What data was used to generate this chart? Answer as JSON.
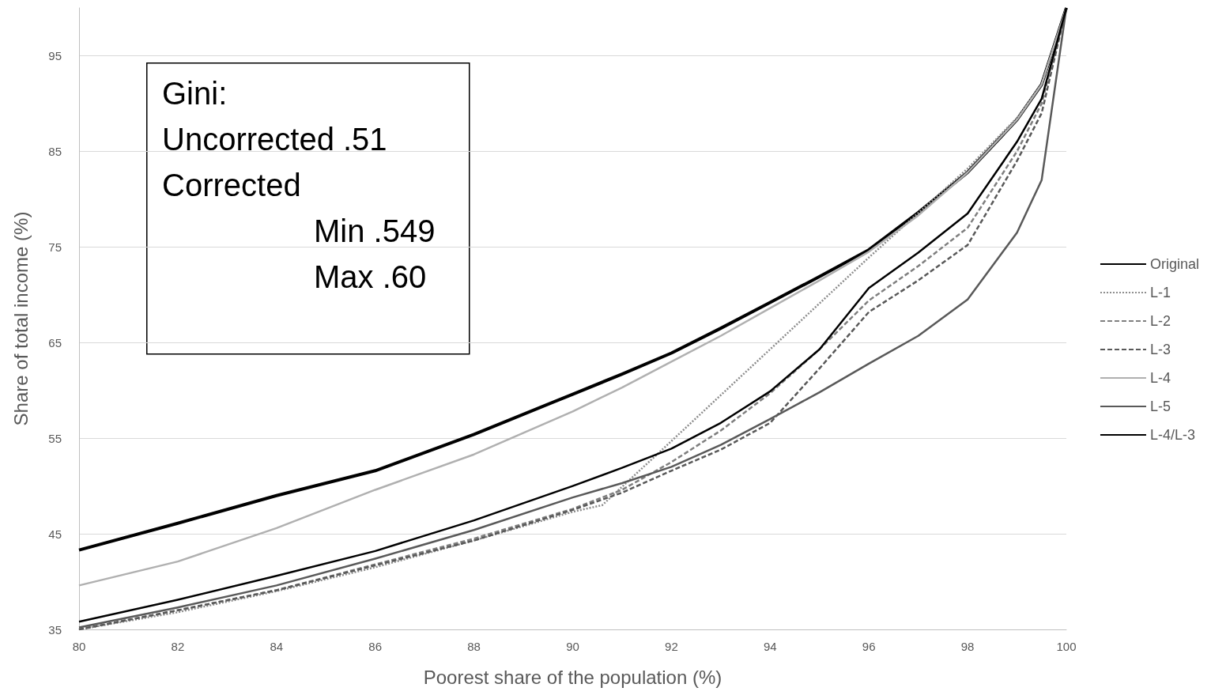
{
  "chart_data": {
    "type": "line",
    "xlabel": "Poorest share of the population (%)",
    "ylabel": "Share of total income (%)",
    "xlim": [
      80,
      100
    ],
    "xticks": [
      80,
      82,
      84,
      86,
      88,
      90,
      92,
      94,
      96,
      98,
      100
    ],
    "ylim": [
      35,
      100
    ],
    "yticks": [
      35,
      45,
      55,
      65,
      75,
      85,
      95
    ],
    "grid": "y",
    "legend": "right",
    "marker": "none",
    "annotations": [
      "Gini:",
      "Uncorrected .51",
      "Corrected",
      "Min .549",
      "Max .60"
    ],
    "x": [
      80,
      82,
      84,
      86,
      88,
      90,
      91,
      92,
      93,
      94,
      95,
      96,
      97,
      98,
      99,
      99.5,
      100
    ],
    "series": [
      {
        "name": "Original",
        "color": "#000000",
        "line_style": "solid",
        "values": [
          43.3,
          46.1,
          49,
          51.6,
          55.4,
          59.6,
          61.7,
          63.9,
          66.5,
          69.2,
          71.9,
          74.7,
          78.6,
          82.8,
          88.3,
          92,
          100
        ]
      },
      {
        "name": "L-1",
        "color": "#8c8c8c",
        "line_style": "dotted",
        "x": [
          80,
          82,
          84,
          86,
          88,
          90,
          90.6,
          92,
          94,
          96,
          98,
          99,
          99.5,
          100
        ],
        "values": [
          35,
          36.8,
          39,
          41.5,
          44.3,
          47.3,
          48,
          54.7,
          64.3,
          73.9,
          83.2,
          88.5,
          92,
          100
        ]
      },
      {
        "name": "L-2",
        "color": "#7f7f7f",
        "line_style": "dashed",
        "values": [
          35,
          37,
          39.1,
          41.8,
          44.5,
          47.6,
          49.6,
          52.5,
          55.8,
          59.7,
          64.3,
          69.4,
          73,
          77,
          85,
          90,
          100
        ]
      },
      {
        "name": "L-3",
        "color": "#595959",
        "line_style": "dashed",
        "values": [
          35,
          37,
          39.1,
          41.7,
          44.3,
          47.5,
          49.3,
          51.6,
          53.8,
          56.6,
          62.3,
          68.2,
          71.5,
          75.2,
          84,
          89,
          100
        ]
      },
      {
        "name": "L-4",
        "color": "#b0b0b0",
        "line_style": "solid",
        "values": [
          39.6,
          42.1,
          45.6,
          49.6,
          53.3,
          57.8,
          60.3,
          63,
          65.7,
          68.6,
          71.5,
          74.5,
          78.3,
          82.8,
          88.3,
          92,
          100
        ]
      },
      {
        "name": "L-5",
        "color": "#595959",
        "line_style": "solid",
        "values": [
          35.2,
          37.3,
          39.6,
          42.4,
          45.4,
          48.8,
          50.3,
          52,
          54.3,
          57,
          59.8,
          62.8,
          65.7,
          69.5,
          76.5,
          82,
          100
        ]
      },
      {
        "name": "L-4/L-3",
        "color": "#000000",
        "line_style": "solid",
        "values": [
          35.8,
          38.1,
          40.6,
          43.2,
          46.4,
          50,
          51.9,
          53.9,
          56.6,
          59.9,
          64.3,
          70.7,
          74.4,
          78.5,
          86,
          90.5,
          100
        ]
      }
    ]
  }
}
